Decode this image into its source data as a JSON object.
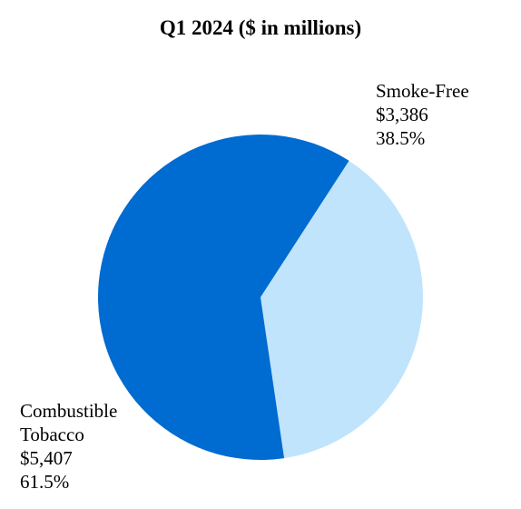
{
  "chart_data": {
    "type": "pie",
    "title": "Q1 2024 ($ in millions)",
    "start_angle_deg": -57,
    "direction": "clockwise",
    "slices": [
      {
        "label_lines": [
          "Smoke-Free"
        ],
        "value": 3386,
        "value_label": "$3,386",
        "percent_label": "38.5%",
        "color": "#C1E4FD"
      },
      {
        "label_lines": [
          "Combustible",
          "Tobacco"
        ],
        "value": 5407,
        "value_label": "$5,407",
        "percent_label": "61.5%",
        "color": "#006BD0"
      }
    ],
    "legend": "none"
  }
}
